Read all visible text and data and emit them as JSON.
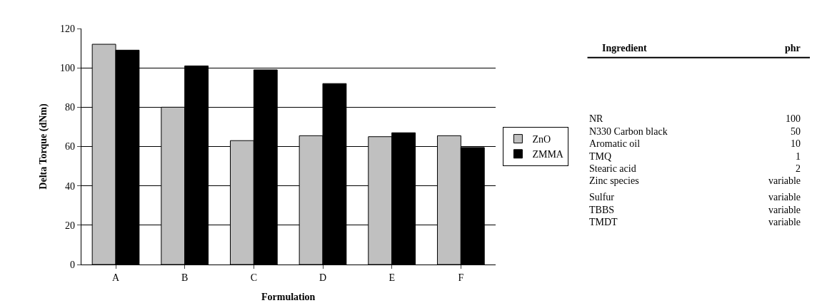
{
  "chart_data": [
    {
      "type": "bar",
      "xlabel": "Formulation",
      "ylabel": "Delta Torque (dNm)",
      "categories": [
        "A",
        "B",
        "C",
        "D",
        "E",
        "F"
      ],
      "series": [
        {
          "name": "ZnO",
          "color": "#c0c0c0",
          "values": [
            112,
            80,
            63,
            65.5,
            65,
            65.5
          ]
        },
        {
          "name": "ZMMA",
          "color": "#000000",
          "values": [
            109,
            101,
            99,
            92,
            67,
            59.5
          ]
        }
      ],
      "ylim": [
        0,
        120
      ],
      "yticks": [
        0,
        20,
        40,
        60,
        80,
        100,
        120
      ],
      "grid": "y",
      "legend": "right"
    },
    {
      "type": "other",
      "xlabel": "Ingredient",
      "ylabel": "phr",
      "categories": [
        "NR",
        "N330 Carbon black",
        "Aromatic oil",
        "TMQ",
        "Stearic acid",
        "Zinc species",
        "Sulfur",
        "TBBS",
        "TMDT"
      ],
      "value_labels": [
        "100",
        "50",
        "10",
        "1",
        "2",
        "variable",
        "variable",
        "variable",
        "variable"
      ]
    }
  ]
}
